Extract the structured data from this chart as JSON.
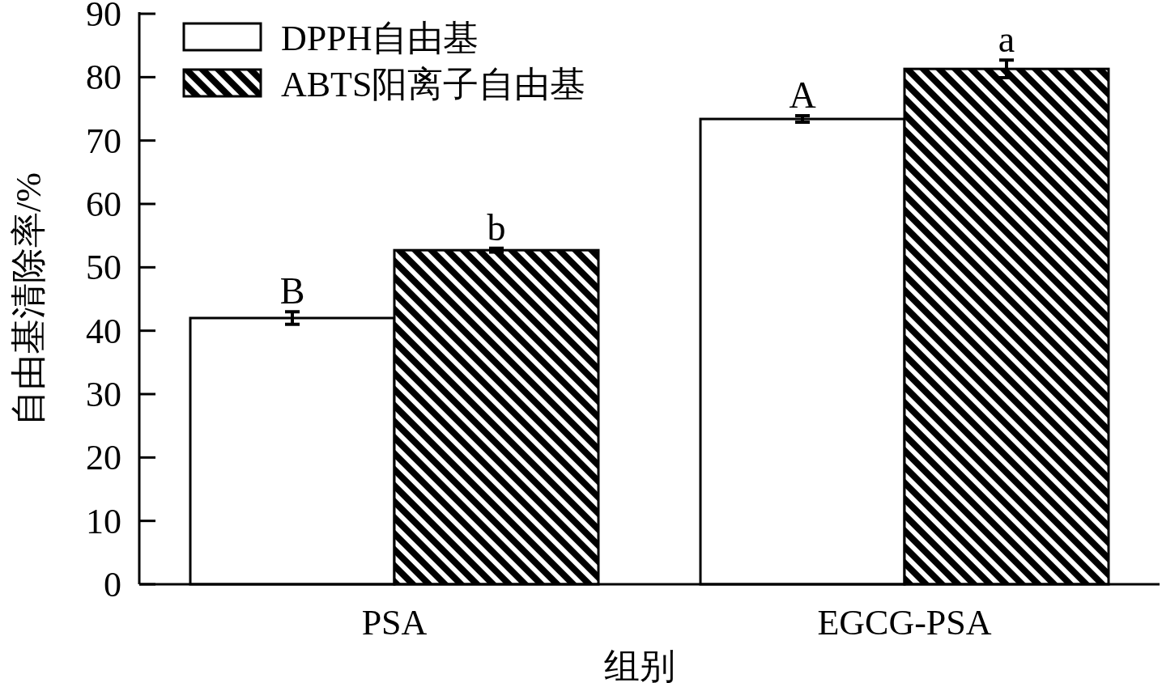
{
  "chart_data": {
    "type": "bar",
    "xlabel": "组别",
    "ylabel": "自由基清除率/%",
    "categories": [
      "PSA",
      "EGCG-PSA"
    ],
    "series": [
      {
        "name": "DPPH自由基",
        "color": "#ffffff",
        "values": [
          42.0,
          73.4
        ],
        "errors": [
          1.0,
          0.5
        ]
      },
      {
        "name": "ABTS阳离子自由基",
        "color": "#000000",
        "values": [
          52.7,
          81.3
        ],
        "errors": [
          0.3,
          1.4
        ]
      }
    ],
    "ylim": [
      0,
      90
    ],
    "yticks": [
      0,
      10,
      20,
      30,
      40,
      50,
      60,
      70,
      80,
      90
    ],
    "annotations": [
      {
        "text": "B",
        "x": "PSA",
        "y": 42.0
      },
      {
        "text": "b",
        "x": "PSA",
        "y": 52.7
      },
      {
        "text": "A",
        "x": "EGCG-PSA",
        "y": 73.4
      },
      {
        "text": "a",
        "x": "EGCG-PSA",
        "y": 81.3
      }
    ],
    "grid": false,
    "legend": "top left"
  }
}
